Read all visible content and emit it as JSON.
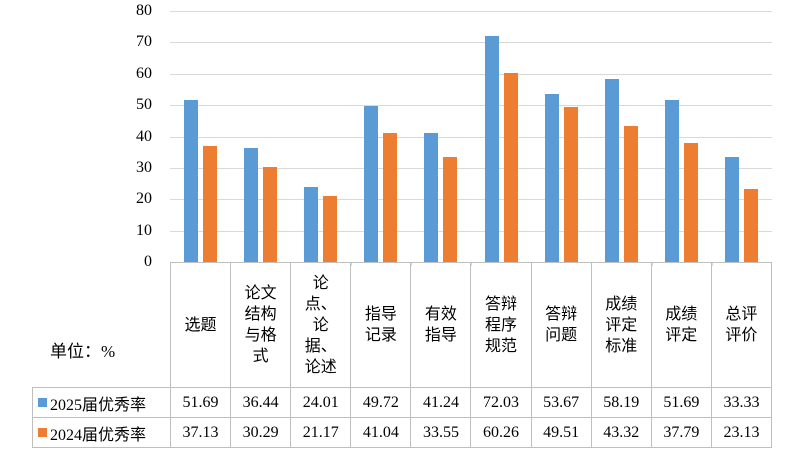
{
  "unit_label": "单位：%",
  "colors": {
    "series_2025": "#5B9BD5",
    "series_2024": "#ED7D31",
    "gridline": "#D9D9D9",
    "table_border": "#BFBFBF",
    "text": "#000000"
  },
  "y_axis": {
    "min": 0,
    "max": 80,
    "step": 10,
    "tick_labels": [
      "80",
      "70",
      "60",
      "50",
      "40",
      "30",
      "20",
      "10",
      "0"
    ]
  },
  "chart_data": {
    "type": "bar",
    "title": "",
    "xlabel": "",
    "ylabel": "单位：%",
    "ylim": [
      0,
      80
    ],
    "grid": true,
    "legend_position": "bottom-table",
    "categories": [
      "选题",
      "论文结构与格式",
      "论点、论据、论述",
      "指导记录",
      "有效指导",
      "答辩程序规范",
      "答辩问题",
      "成绩评定标准",
      "成绩评定",
      "总评评价"
    ],
    "category_display": [
      "选题",
      "论文\n结构\n与格\n式",
      "论\n点、\n论\n据、\n论述",
      "指导\n记录",
      "有效\n指导",
      "答辩\n程序\n规范",
      "答辩\n问题",
      "成绩\n评定\n标准",
      "成绩\n评定",
      "总评\n评价"
    ],
    "series": [
      {
        "name": "2025届优秀率",
        "color": "#5B9BD5",
        "values": [
          51.69,
          36.44,
          24.01,
          49.72,
          41.24,
          72.03,
          53.67,
          58.19,
          51.69,
          33.33
        ]
      },
      {
        "name": "2024届优秀率",
        "color": "#ED7D31",
        "values": [
          37.13,
          30.29,
          21.17,
          41.04,
          33.55,
          60.26,
          49.51,
          43.32,
          37.79,
          23.13
        ]
      }
    ]
  }
}
